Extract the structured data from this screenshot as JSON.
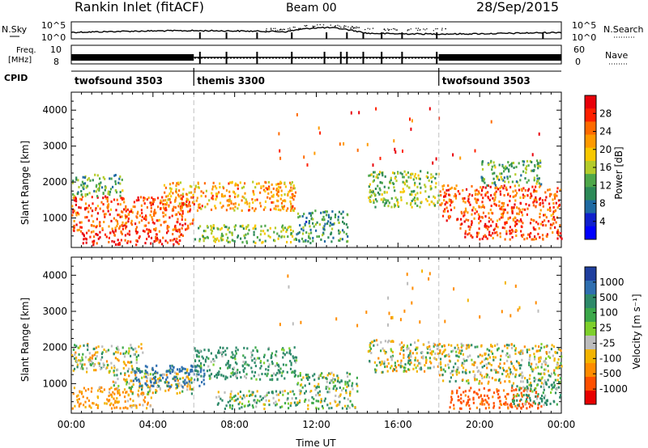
{
  "header": {
    "station": "Rankin Inlet (fitACF)",
    "beam": "Beam 00",
    "date": "28/Sep/2015"
  },
  "noise_panel": {
    "left_label": "N.Sky",
    "left_ticks": [
      "10^5",
      "10^0"
    ],
    "right_label": "N.Search",
    "right_ticks": [
      "10^5",
      "10^0"
    ]
  },
  "freq_panel": {
    "left_label_1": "Freq.",
    "left_label_2": "[MHz]",
    "left_ticks": [
      "10",
      "8"
    ],
    "right_label": "Nave",
    "right_ticks": [
      "60",
      "0"
    ]
  },
  "cpid": {
    "label": "CPID",
    "segments": [
      {
        "name": "twofsound 3503",
        "start": 0,
        "end": 6
      },
      {
        "name": "themis 3300",
        "start": 6,
        "end": 18
      },
      {
        "name": "twofsound 3503",
        "start": 18,
        "end": 24
      }
    ]
  },
  "axes": {
    "xlabel": "Time UT",
    "x_ticks": [
      "00:00",
      "04:00",
      "08:00",
      "12:00",
      "16:00",
      "20:00",
      "00:00"
    ],
    "ylabel": "Slant Range [km]",
    "y_ticks": [
      "1000",
      "2000",
      "3000",
      "4000"
    ]
  },
  "power_colorbar": {
    "label": "Power [dB]",
    "ticks": [
      "28",
      "24",
      "20",
      "16",
      "12",
      "8",
      "4"
    ],
    "colors": [
      "#e8000a",
      "#ff2000",
      "#ff6a00",
      "#ff9a00",
      "#f8c800",
      "#b4cc2a",
      "#4fa84a",
      "#2d8a58",
      "#1f6aa2",
      "#1020cc",
      "#0000ff"
    ]
  },
  "velocity_colorbar": {
    "label": "Velocity [m s⁻¹]",
    "ticks": [
      "1000",
      "500",
      "100",
      "25",
      "-25",
      "-100",
      "-500",
      "-1000"
    ],
    "colors": [
      "#1f3f9f",
      "#2f6fb0",
      "#2e8a6a",
      "#3ca84a",
      "#7ed02c",
      "#bcbcbc",
      "#f3b400",
      "#ff8c00",
      "#ff5000",
      "#e80000"
    ]
  },
  "chart_data": [
    {
      "type": "heatmap",
      "title": "Power",
      "xlabel": "Time UT",
      "ylabel": "Slant Range [km]",
      "xlim": [
        0,
        24
      ],
      "ylim": [
        180,
        4500
      ],
      "colorbar": "Power [dB]",
      "clim": [
        0,
        30
      ],
      "blobs": [
        {
          "t0": 0.0,
          "t1": 6.0,
          "r0": 600,
          "r1": 1600,
          "value": 24
        },
        {
          "t0": 0.5,
          "t1": 5.5,
          "r0": 250,
          "r1": 600,
          "value": 27
        },
        {
          "t0": 0.0,
          "t1": 2.5,
          "r0": 1600,
          "r1": 2200,
          "value": 12
        },
        {
          "t0": 4.5,
          "t1": 11.0,
          "r0": 1200,
          "r1": 2000,
          "value": 20
        },
        {
          "t0": 6.0,
          "t1": 11.0,
          "r0": 300,
          "r1": 800,
          "value": 14
        },
        {
          "t0": 11.0,
          "t1": 13.5,
          "r0": 300,
          "r1": 1200,
          "value": 10
        },
        {
          "t0": 14.5,
          "t1": 18.0,
          "r0": 1300,
          "r1": 2300,
          "value": 14
        },
        {
          "t0": 18.0,
          "t1": 24.0,
          "r0": 900,
          "r1": 1900,
          "value": 24
        },
        {
          "t0": 19.0,
          "t1": 24.0,
          "r0": 400,
          "r1": 900,
          "value": 26
        },
        {
          "t0": 20.0,
          "t1": 23.0,
          "r0": 1900,
          "r1": 2600,
          "value": 12
        }
      ]
    },
    {
      "type": "heatmap",
      "title": "Velocity",
      "xlabel": "Time UT",
      "ylabel": "Slant Range [km]",
      "xlim": [
        0,
        24
      ],
      "ylim": [
        180,
        4500
      ],
      "colorbar": "Velocity [m s⁻¹]",
      "clim": [
        -1000,
        1000
      ],
      "blobs": [
        {
          "t0": 0.0,
          "t1": 4.0,
          "r0": 300,
          "r1": 900,
          "value": -150
        },
        {
          "t0": 0.0,
          "t1": 3.5,
          "r0": 1300,
          "r1": 2100,
          "value": 25
        },
        {
          "t0": 2.0,
          "t1": 6.0,
          "r0": 700,
          "r1": 1400,
          "value": 0
        },
        {
          "t0": 3.0,
          "t1": 6.5,
          "r0": 900,
          "r1": 1500,
          "value": 400
        },
        {
          "t0": 6.0,
          "t1": 11.0,
          "r0": 1100,
          "r1": 2000,
          "value": 150
        },
        {
          "t0": 7.0,
          "t1": 11.0,
          "r0": 300,
          "r1": 800,
          "value": 90
        },
        {
          "t0": 11.0,
          "t1": 14.0,
          "r0": 300,
          "r1": 1300,
          "value": 60
        },
        {
          "t0": 14.5,
          "t1": 18.0,
          "r0": 1300,
          "r1": 2200,
          "value": 0
        },
        {
          "t0": 18.0,
          "t1": 24.0,
          "r0": 1000,
          "r1": 2100,
          "value": 0
        },
        {
          "t0": 18.5,
          "t1": 23.0,
          "r0": 300,
          "r1": 900,
          "value": -400
        },
        {
          "t0": 21.5,
          "t1": 24.0,
          "r0": 400,
          "r1": 1100,
          "value": 150
        }
      ]
    }
  ]
}
